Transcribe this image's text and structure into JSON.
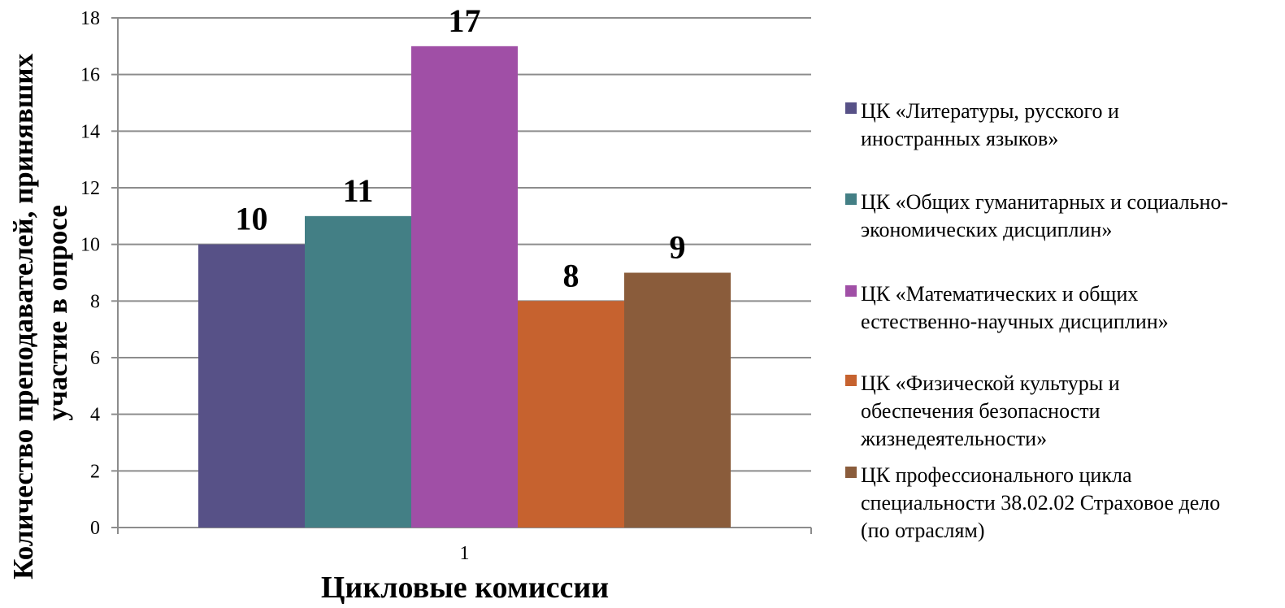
{
  "chart_data": {
    "type": "bar",
    "categories": [
      "1"
    ],
    "series": [
      {
        "name": "ЦК «Литературы, русского и\nиностранных языков»",
        "values": [
          10
        ],
        "color": "#575187"
      },
      {
        "name": "ЦК «Общих гуманитарных и социально-\nэкономических дисциплин»",
        "values": [
          11
        ],
        "color": "#437f85"
      },
      {
        "name": "ЦК «Математических и общих\nестественно-научных дисциплин»",
        "values": [
          17
        ],
        "color": "#a04fa6"
      },
      {
        "name": "ЦК «Физической культуры и\nобеспечения безопасности\nжизнедеятельности»",
        "values": [
          8
        ],
        "color": "#c6622f"
      },
      {
        "name": "ЦК профессионального цикла\nспециальности  38.02.02 Страховое дело\n(по отраслям)",
        "values": [
          9
        ],
        "color": "#8a5c3b"
      }
    ],
    "data_labels": [
      "10",
      "11",
      "17",
      "8",
      "9"
    ],
    "xlabel": "Цикловые комиссии",
    "ylabel_lines": [
      "Количество преподавателей, принявших",
      "участие в опросе"
    ],
    "ylim": [
      0,
      18
    ],
    "yticks": [
      "0",
      "2",
      "4",
      "6",
      "8",
      "10",
      "12",
      "14",
      "16",
      "18"
    ],
    "grid": true,
    "gridline_color": "#8c8c8c",
    "legend_position": "right"
  }
}
